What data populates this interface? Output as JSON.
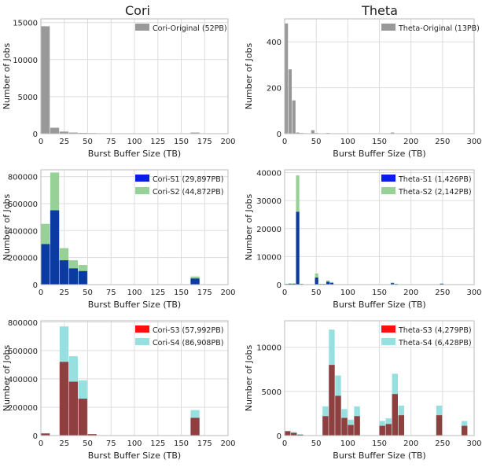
{
  "column_titles": [
    "Cori",
    "Theta"
  ],
  "colors": {
    "original": "#999999",
    "s1": "#0a1fe6",
    "s2": "#98d198",
    "s1_s2_overlap": "#0b3aa0",
    "s3": "#ff1010",
    "s4": "#98e0e0",
    "s3_s4_overlap": "#8f3f3f",
    "grid": "#dddddd",
    "frame": "#bbbbbb"
  },
  "chart_data": [
    {
      "type": "bar",
      "panel": "cori-original",
      "xlabel": "Burst Buffer Size (TB)",
      "ylabel": "Number of Jobs",
      "xlim": [
        0,
        200
      ],
      "ylim": [
        0,
        15500
      ],
      "xticks": [
        "0",
        "25",
        "50",
        "75",
        "100",
        "125",
        "150",
        "175",
        "200"
      ],
      "yticks": [
        "0",
        "5000",
        "10000",
        "15000"
      ],
      "ytick_values": [
        0,
        5000,
        10000,
        15000
      ],
      "bin_width": 10,
      "legend_position": "top-right",
      "series": [
        {
          "name": "Cori-Original (52PB)",
          "color_key": "original",
          "values": [
            14500,
            800,
            280,
            150,
            100,
            80,
            60,
            50,
            40,
            40,
            30,
            30,
            30,
            30,
            30,
            30,
            150,
            30,
            30,
            20
          ]
        }
      ]
    },
    {
      "type": "bar",
      "panel": "theta-original",
      "xlabel": "Burst Buffer Size (TB)",
      "ylabel": "Number of Jobs",
      "xlim": [
        0,
        300
      ],
      "ylim": [
        0,
        500
      ],
      "xticks": [
        "0",
        "50",
        "100",
        "150",
        "200",
        "250",
        "300"
      ],
      "yticks": [
        "0",
        "200",
        "400"
      ],
      "ytick_values": [
        0,
        200,
        400
      ],
      "bin_width": 6,
      "legend_position": "top-right",
      "series": [
        {
          "name": "Theta-Original (13PB)",
          "color_key": "original",
          "values": [
            480,
            280,
            145,
            5,
            3,
            2,
            0,
            15,
            3,
            0,
            0,
            3,
            0,
            0,
            0,
            0,
            0,
            0,
            0,
            0,
            0,
            0,
            0,
            0,
            0,
            0,
            0,
            0,
            5,
            0,
            0,
            0,
            0,
            0,
            0,
            0,
            0,
            0,
            0,
            0,
            0,
            0,
            0,
            0,
            0,
            0,
            0,
            0,
            0,
            0
          ]
        }
      ]
    },
    {
      "type": "bar",
      "panel": "cori-s1-s2",
      "xlabel": "Burst Buffer Size (TB)",
      "ylabel": "Number of Jobs",
      "xlim": [
        0,
        200
      ],
      "ylim": [
        0,
        850000
      ],
      "xticks": [
        "0",
        "25",
        "50",
        "75",
        "100",
        "125",
        "150",
        "175",
        "200"
      ],
      "yticks": [
        "0",
        "200000",
        "400000",
        "600000",
        "800000"
      ],
      "ytick_values": [
        0,
        200000,
        400000,
        600000,
        800000
      ],
      "bin_width": 10,
      "legend_position": "top-right",
      "series": [
        {
          "name": "Cori-S1 (29,897PB)",
          "color_key": "s1",
          "values": [
            300000,
            550000,
            180000,
            120000,
            100000,
            0,
            0,
            0,
            0,
            0,
            0,
            0,
            0,
            0,
            0,
            0,
            45000,
            0,
            0,
            0
          ]
        },
        {
          "name": "Cori-S2 (44,872PB)",
          "color_key": "s2",
          "values": [
            450000,
            830000,
            270000,
            180000,
            145000,
            0,
            0,
            0,
            0,
            0,
            0,
            0,
            0,
            0,
            0,
            0,
            60000,
            0,
            0,
            0
          ]
        }
      ]
    },
    {
      "type": "bar",
      "panel": "theta-s1-s2",
      "xlabel": "Burst Buffer Size (TB)",
      "ylabel": "Number of Jobs",
      "xlim": [
        0,
        300
      ],
      "ylim": [
        0,
        41000
      ],
      "xticks": [
        "0",
        "50",
        "100",
        "150",
        "200",
        "250",
        "300"
      ],
      "yticks": [
        "0",
        "10000",
        "20000",
        "30000",
        "40000"
      ],
      "ytick_values": [
        0,
        10000,
        20000,
        30000,
        40000
      ],
      "bin_width": 6,
      "legend_position": "top-right",
      "series": [
        {
          "name": "Theta-S1 (1,426PB)",
          "color_key": "s1",
          "values": [
            200,
            300,
            300,
            26000,
            200,
            100,
            100,
            100,
            2500,
            200,
            200,
            1000,
            600,
            100,
            100,
            100,
            100,
            100,
            100,
            100,
            100,
            100,
            100,
            100,
            100,
            100,
            100,
            100,
            500,
            200,
            100,
            100,
            100,
            100,
            100,
            100,
            100,
            100,
            100,
            100,
            100,
            300,
            100,
            100,
            100,
            100,
            100,
            100,
            100,
            100
          ]
        },
        {
          "name": "Theta-S2 (2,142PB)",
          "color_key": "s2",
          "values": [
            300,
            450,
            450,
            39000,
            300,
            150,
            150,
            150,
            4000,
            300,
            300,
            1500,
            900,
            150,
            150,
            150,
            150,
            150,
            150,
            150,
            150,
            150,
            150,
            150,
            150,
            150,
            150,
            150,
            750,
            300,
            150,
            150,
            150,
            150,
            150,
            150,
            150,
            150,
            150,
            150,
            150,
            450,
            150,
            150,
            150,
            150,
            150,
            150,
            150,
            150
          ]
        }
      ]
    },
    {
      "type": "bar",
      "panel": "cori-s3-s4",
      "xlabel": "Burst Buffer Size (TB)",
      "ylabel": "Number of Jobs",
      "xlim": [
        0,
        200
      ],
      "ylim": [
        0,
        810000
      ],
      "xticks": [
        "0",
        "25",
        "50",
        "75",
        "100",
        "125",
        "150",
        "175",
        "200"
      ],
      "yticks": [
        "0",
        "200000",
        "400000",
        "600000",
        "800000"
      ],
      "ytick_values": [
        0,
        200000,
        400000,
        600000,
        800000
      ],
      "bin_width": 10,
      "legend_position": "top-right",
      "series": [
        {
          "name": "Cori-S3 (57,992PB)",
          "color_key": "s3",
          "values": [
            15000,
            0,
            520000,
            380000,
            260000,
            10000,
            0,
            0,
            0,
            0,
            0,
            0,
            0,
            0,
            0,
            0,
            125000,
            0,
            0,
            0
          ]
        },
        {
          "name": "Cori-S4 (86,908PB)",
          "color_key": "s4",
          "values": [
            15000,
            0,
            770000,
            560000,
            390000,
            10000,
            0,
            0,
            0,
            0,
            0,
            0,
            0,
            0,
            0,
            0,
            180000,
            0,
            0,
            0
          ]
        }
      ]
    },
    {
      "type": "bar",
      "panel": "theta-s3-s4",
      "xlabel": "Burst Buffer Size (TB)",
      "ylabel": "Number of Jobs",
      "xlim": [
        0,
        300
      ],
      "ylim": [
        0,
        13000
      ],
      "xticks": [
        "0",
        "50",
        "100",
        "150",
        "200",
        "250",
        "300"
      ],
      "yticks": [
        "0",
        "5000",
        "10000"
      ],
      "ytick_values": [
        0,
        5000,
        10000
      ],
      "bin_width": 10,
      "legend_position": "top-right",
      "series": [
        {
          "name": "Theta-S3 (4,279PB)",
          "color_key": "s3",
          "values": [
            500,
            300,
            100,
            0,
            0,
            0,
            2200,
            8000,
            4500,
            2000,
            1200,
            2200,
            0,
            0,
            0,
            1100,
            1300,
            4700,
            2300,
            0,
            0,
            0,
            0,
            0,
            2300,
            0,
            0,
            0,
            1100,
            0
          ]
        },
        {
          "name": "Theta-S4 (6,428PB)",
          "color_key": "s4",
          "values": [
            500,
            400,
            150,
            0,
            0,
            0,
            3300,
            12000,
            6800,
            3000,
            1800,
            3300,
            0,
            0,
            0,
            1650,
            1950,
            7000,
            3400,
            0,
            0,
            0,
            0,
            0,
            3400,
            0,
            0,
            0,
            1650,
            0
          ]
        }
      ]
    }
  ]
}
